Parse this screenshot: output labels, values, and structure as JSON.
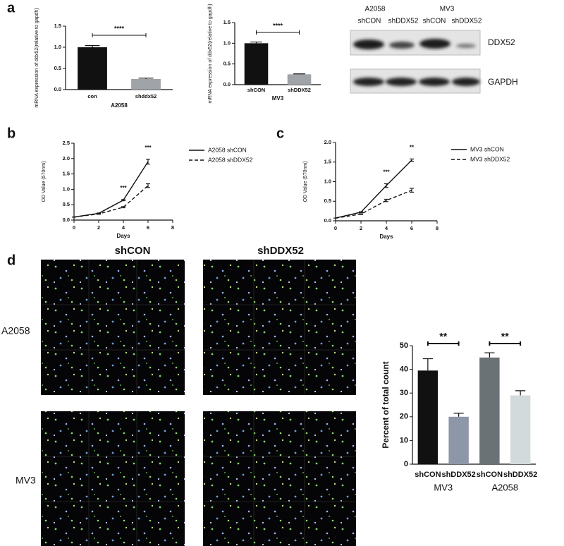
{
  "panels": [
    "a",
    "b",
    "c",
    "d"
  ],
  "blot": {
    "cell_lines": [
      "A2058",
      "MV3"
    ],
    "conditions": [
      "shCON",
      "shDDX52",
      "shCON",
      "shDDX52"
    ],
    "bands": [
      "DDX52",
      "GAPDH"
    ]
  },
  "micrographs": {
    "columns": [
      "shCON",
      "shDDX52"
    ],
    "rows": [
      "A2058",
      "MV3"
    ]
  },
  "chart_data": [
    {
      "type": "bar",
      "ylabel": "mRNA expression of ddx52(relative to gapdh)",
      "xlabel": "A2058",
      "categories": [
        "con",
        "shddx52"
      ],
      "values": [
        1.0,
        0.25
      ],
      "errors": [
        0.04,
        0.02
      ],
      "colors": [
        "#111111",
        "#a0a4a8"
      ],
      "ylim": [
        0,
        1.5
      ],
      "yticks": [
        {
          "value": 0,
          "label": "0.0"
        },
        0.5,
        {
          "value": 1,
          "label": "1.0"
        },
        1.5
      ],
      "annotations": [
        "****"
      ]
    },
    {
      "type": "bar",
      "ylabel": "mRNA expression of ddx52(relative to gapdh)",
      "xlabel": "MV3",
      "categories": [
        "shCON",
        "shDDX52"
      ],
      "values": [
        1.0,
        0.25
      ],
      "errors": [
        0.03,
        0.01
      ],
      "colors": [
        "#111111",
        "#a0a4a8"
      ],
      "ylim": [
        0,
        1.5
      ],
      "yticks": [
        {
          "value": 0,
          "label": "0.0"
        },
        0.5,
        {
          "value": 1,
          "label": "1.0"
        },
        1.5
      ],
      "annotations": [
        "****"
      ]
    },
    {
      "type": "line",
      "xlabel": "Days",
      "ylabel": "OD Value (570nm)",
      "x": [
        0,
        2,
        4,
        6
      ],
      "series": [
        {
          "name": "A2058 shCON",
          "color": "#111111",
          "line_style": "solid",
          "values": [
            0.1,
            0.22,
            0.65,
            1.9
          ],
          "errors": [
            0,
            0.01,
            0.02,
            0.08
          ]
        },
        {
          "name": "A2058  shDDX52",
          "color": "#111111",
          "line_style": "dashed",
          "values": [
            0.1,
            0.2,
            0.42,
            1.12
          ],
          "errors": [
            0,
            0.01,
            0.02,
            0.06
          ]
        }
      ],
      "xlim": [
        0,
        8
      ],
      "xticks": [
        0,
        2,
        4,
        6,
        8
      ],
      "ylim": [
        0,
        2.5
      ],
      "yticks": [
        {
          "value": 0,
          "label": "0.0"
        },
        0.5,
        {
          "value": 1,
          "label": "1.0"
        },
        1.5,
        {
          "value": 2,
          "label": "2.0"
        },
        2.5
      ],
      "annotations": [
        "***",
        "***"
      ]
    },
    {
      "type": "line",
      "xlabel": "Days",
      "ylabel": "OD Value (570nm)",
      "x": [
        0,
        2,
        4,
        6
      ],
      "series": [
        {
          "name": "MV3 shCON",
          "color": "#111111",
          "line_style": "solid",
          "values": [
            0.07,
            0.22,
            0.9,
            1.55
          ],
          "errors": [
            0,
            0.01,
            0.05,
            0.03
          ]
        },
        {
          "name": "MV3  shDDX52",
          "color": "#111111",
          "line_style": "dashed",
          "values": [
            0.07,
            0.17,
            0.52,
            0.78
          ],
          "errors": [
            0,
            0.01,
            0.03,
            0.05
          ]
        }
      ],
      "xlim": [
        0,
        8
      ],
      "xticks": [
        0,
        2,
        4,
        6,
        8
      ],
      "ylim": [
        0,
        2
      ],
      "yticks": [
        {
          "value": 0,
          "label": "0.0"
        },
        0.5,
        {
          "value": 1,
          "label": "1.0"
        },
        1.5,
        {
          "value": 2,
          "label": "2.0"
        }
      ],
      "annotations": [
        "***",
        "**"
      ]
    },
    {
      "type": "bar",
      "ylabel": "Percent of  total count",
      "categories": [
        "shCON",
        "shDDX52",
        "shCON",
        "shDDX52"
      ],
      "groups": [
        "MV3",
        "A2058"
      ],
      "values": [
        39.5,
        20,
        45,
        29
      ],
      "errors": [
        5,
        1.5,
        2,
        2
      ],
      "colors": [
        "#111111",
        "#8e97a8",
        "#6a7276",
        "#d2dadb"
      ],
      "ylim": [
        0,
        50
      ],
      "yticks": [
        0,
        10,
        20,
        30,
        40,
        50
      ],
      "annotations": [
        "**",
        "**"
      ]
    }
  ]
}
